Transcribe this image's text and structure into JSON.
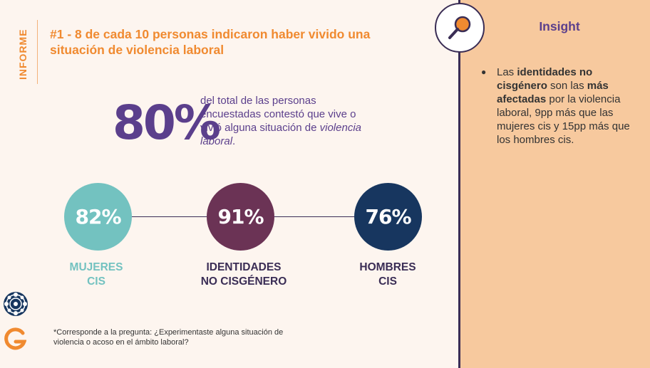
{
  "side_label": "INFORME",
  "title": "#1 - 8 de cada 10 personas indicaron haber vivido una situación de violencia laboral",
  "headline": {
    "value": "80%",
    "description": "del total de las personas encuestadas contestó que vive o vivió alguna situación de",
    "description_em": "violencia laboral",
    "description_end": "."
  },
  "groups": [
    {
      "value": "82%",
      "label_line1": "MUJERES",
      "label_line2": "CIS",
      "color": "#73c2c0"
    },
    {
      "value": "91%",
      "label_line1": "IDENTIDADES",
      "label_line2": "NO CISGÉNERO",
      "color": "#6b3355"
    },
    {
      "value": "76%",
      "label_line1": "HOMBRES",
      "label_line2": "CIS",
      "color": "#17365f"
    }
  ],
  "footnote": "*Corresponde a la pregunta: ¿Experimentaste alguna situación de violencia o acoso en el ámbito laboral?",
  "insight": {
    "title": "Insight",
    "parts": {
      "p1": "Las ",
      "b1": "identidades no cisgénero",
      "p2": " son las ",
      "b2": "más afectadas",
      "p3": " por la violencia laboral, 9pp más que las mujeres cis y 15pp más que los hombres cis."
    }
  },
  "icons": {
    "magnifier": "magnifier-icon",
    "logo_top": "mandala-logo-icon",
    "logo_bottom": "g-logo-icon"
  },
  "colors": {
    "accent_orange": "#f08a30",
    "purple": "#5b3f8c",
    "navy": "#3a2d55",
    "panel": "#f7c99e"
  }
}
